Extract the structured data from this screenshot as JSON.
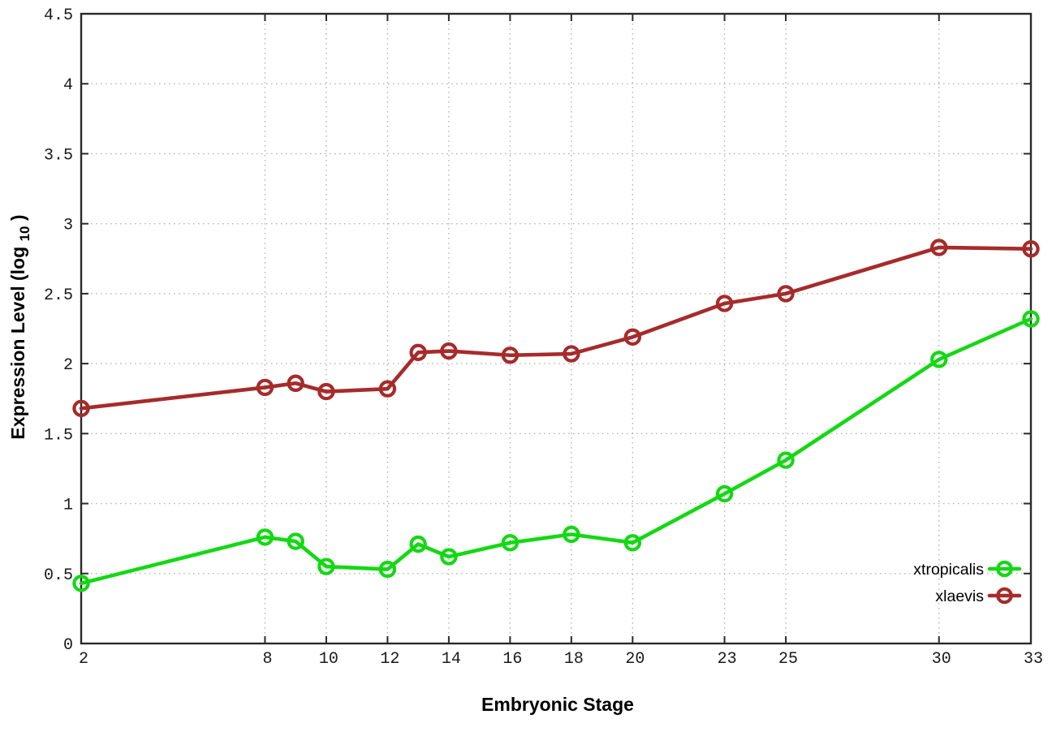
{
  "chart_data": {
    "type": "line",
    "title": "",
    "xlabel": "Embryonic Stage",
    "ylabel": "Expression Level (log10)",
    "ylabel_parts": {
      "base": "Expression Level (log",
      "sub": "10",
      "close": ")"
    },
    "xlim": [
      2,
      33
    ],
    "ylim": [
      0,
      4.5
    ],
    "x_ticks": [
      2,
      8,
      10,
      12,
      14,
      16,
      18,
      20,
      23,
      25,
      30,
      33
    ],
    "y_ticks": [
      0,
      0.5,
      1,
      1.5,
      2,
      2.5,
      3,
      3.5,
      4,
      4.5
    ],
    "grid": true,
    "grid_style": "dotted",
    "legend_position": "bottom-right",
    "x": [
      2,
      8,
      9,
      10,
      12,
      13,
      14,
      16,
      18,
      20,
      23,
      25,
      30,
      33
    ],
    "series": [
      {
        "name": "xtropicalis",
        "color": "#14d814",
        "marker": "open-circle",
        "values": [
          0.43,
          0.76,
          0.73,
          0.55,
          0.53,
          0.71,
          0.62,
          0.72,
          0.78,
          0.72,
          1.07,
          1.31,
          2.03,
          2.32
        ]
      },
      {
        "name": "xlaevis",
        "color": "#a62b2b",
        "marker": "open-circle",
        "values": [
          1.68,
          1.83,
          1.86,
          1.8,
          1.82,
          2.08,
          2.09,
          2.06,
          2.07,
          2.19,
          2.43,
          2.5,
          2.83,
          2.82
        ]
      }
    ],
    "colors": {
      "background": "#ffffff",
      "border": "#2a2a2a",
      "grid": "#b8b8b8",
      "tick": "#2a2a2a",
      "text": "#000000"
    }
  }
}
